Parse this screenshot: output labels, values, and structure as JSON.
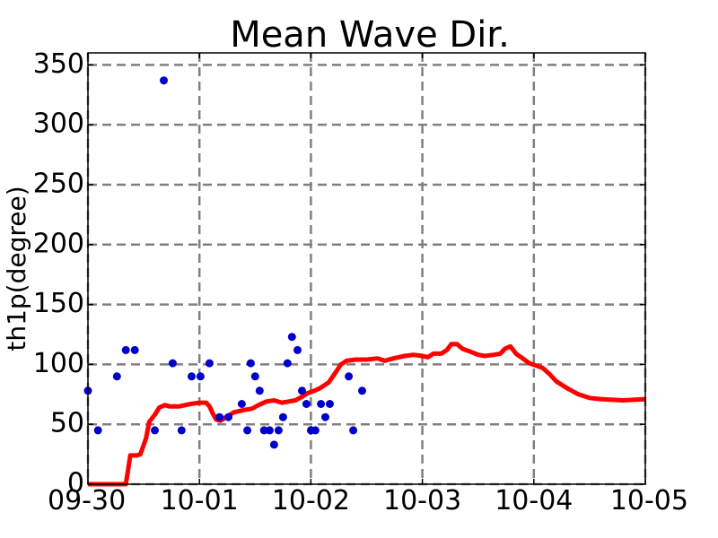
{
  "chart_data": {
    "type": "line",
    "title": "Mean Wave Dir.",
    "ylabel": "th1p(degree)",
    "xlabel": "",
    "x_tick_labels": [
      "09-30",
      "10-01",
      "10-02",
      "10-03",
      "10-04",
      "10-05"
    ],
    "y_ticks": [
      0,
      50,
      100,
      150,
      200,
      250,
      300,
      350
    ],
    "xlim": [
      0,
      5
    ],
    "ylim": [
      0,
      360
    ],
    "grid": true,
    "series": [
      {
        "kind": "scatter",
        "color": "#0000cc",
        "points": [
          [
            0.0,
            78
          ],
          [
            0.09,
            45
          ],
          [
            0.26,
            90
          ],
          [
            0.34,
            112
          ],
          [
            0.42,
            112
          ],
          [
            0.6,
            45
          ],
          [
            0.68,
            337
          ],
          [
            0.76,
            101
          ],
          [
            0.84,
            45
          ],
          [
            0.93,
            90
          ],
          [
            1.01,
            90
          ],
          [
            1.09,
            101
          ],
          [
            1.18,
            56
          ],
          [
            1.26,
            56
          ],
          [
            1.38,
            67
          ],
          [
            1.43,
            45
          ],
          [
            1.46,
            101
          ],
          [
            1.5,
            90
          ],
          [
            1.54,
            78
          ],
          [
            1.58,
            45
          ],
          [
            1.63,
            45
          ],
          [
            1.67,
            33
          ],
          [
            1.71,
            45
          ],
          [
            1.75,
            56
          ],
          [
            1.79,
            101
          ],
          [
            1.83,
            123
          ],
          [
            1.88,
            112
          ],
          [
            1.92,
            78
          ],
          [
            1.96,
            67
          ],
          [
            2.0,
            45
          ],
          [
            2.04,
            45
          ],
          [
            2.09,
            67
          ],
          [
            2.13,
            56
          ],
          [
            2.17,
            67
          ],
          [
            2.34,
            90
          ],
          [
            2.38,
            45
          ],
          [
            2.46,
            78
          ]
        ]
      },
      {
        "kind": "line",
        "color": "#ff0000",
        "points": [
          [
            0.0,
            0
          ],
          [
            0.3,
            0
          ],
          [
            0.34,
            0
          ],
          [
            0.38,
            24
          ],
          [
            0.44,
            24
          ],
          [
            0.47,
            25
          ],
          [
            0.52,
            38
          ],
          [
            0.55,
            52
          ],
          [
            0.6,
            58
          ],
          [
            0.64,
            64
          ],
          [
            0.69,
            66
          ],
          [
            0.73,
            65
          ],
          [
            0.82,
            65
          ],
          [
            0.92,
            67
          ],
          [
            1.0,
            68
          ],
          [
            1.06,
            68
          ],
          [
            1.09,
            65
          ],
          [
            1.12,
            59
          ],
          [
            1.15,
            54
          ],
          [
            1.19,
            53
          ],
          [
            1.24,
            56
          ],
          [
            1.31,
            60
          ],
          [
            1.4,
            62
          ],
          [
            1.47,
            63
          ],
          [
            1.53,
            66
          ],
          [
            1.6,
            69
          ],
          [
            1.67,
            70
          ],
          [
            1.74,
            68
          ],
          [
            1.8,
            69
          ],
          [
            1.86,
            70
          ],
          [
            1.92,
            73
          ],
          [
            1.97,
            76
          ],
          [
            2.03,
            78
          ],
          [
            2.08,
            80
          ],
          [
            2.16,
            85
          ],
          [
            2.22,
            93
          ],
          [
            2.27,
            100
          ],
          [
            2.32,
            103
          ],
          [
            2.4,
            104
          ],
          [
            2.5,
            104
          ],
          [
            2.6,
            105
          ],
          [
            2.66,
            103
          ],
          [
            2.74,
            105
          ],
          [
            2.84,
            107
          ],
          [
            2.92,
            108
          ],
          [
            3.0,
            107
          ],
          [
            3.05,
            106
          ],
          [
            3.1,
            109
          ],
          [
            3.17,
            109
          ],
          [
            3.22,
            112
          ],
          [
            3.26,
            117
          ],
          [
            3.31,
            117
          ],
          [
            3.36,
            113
          ],
          [
            3.42,
            111
          ],
          [
            3.5,
            108
          ],
          [
            3.56,
            107
          ],
          [
            3.64,
            108
          ],
          [
            3.7,
            109
          ],
          [
            3.74,
            113
          ],
          [
            3.79,
            115
          ],
          [
            3.84,
            109
          ],
          [
            3.9,
            105
          ],
          [
            3.96,
            101
          ],
          [
            4.02,
            99
          ],
          [
            4.08,
            97
          ],
          [
            4.14,
            92
          ],
          [
            4.2,
            86
          ],
          [
            4.3,
            80
          ],
          [
            4.4,
            75
          ],
          [
            4.5,
            72
          ],
          [
            4.6,
            71
          ],
          [
            4.8,
            70
          ],
          [
            5.0,
            71
          ]
        ]
      }
    ]
  }
}
